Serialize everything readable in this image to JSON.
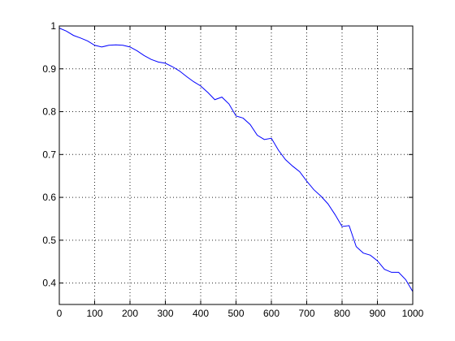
{
  "chart_data": {
    "type": "line",
    "title": "",
    "xlabel": "",
    "ylabel": "",
    "xlim": [
      0,
      1000
    ],
    "ylim": [
      0.35,
      1.0
    ],
    "grid": true,
    "x_ticks": [
      0,
      100,
      200,
      300,
      400,
      500,
      600,
      700,
      800,
      900,
      1000
    ],
    "x_tick_labels": [
      "0",
      "100",
      "200",
      "300",
      "400",
      "500",
      "600",
      "700",
      "800",
      "900",
      "1000"
    ],
    "y_ticks": [
      0.4,
      0.5,
      0.6,
      0.7,
      0.8,
      0.9,
      1.0
    ],
    "y_tick_labels": [
      "0.4",
      "0.5",
      "0.6",
      "0.7",
      "0.8",
      "0.9",
      "1"
    ],
    "series": [
      {
        "color": "#0000ff",
        "x": [
          0,
          20,
          40,
          60,
          80,
          100,
          120,
          140,
          160,
          180,
          200,
          220,
          240,
          260,
          280,
          300,
          320,
          340,
          360,
          380,
          400,
          420,
          440,
          460,
          480,
          500,
          520,
          540,
          560,
          580,
          600,
          620,
          640,
          660,
          680,
          700,
          720,
          740,
          760,
          780,
          800,
          820,
          840,
          860,
          880,
          900,
          920,
          940,
          960,
          980,
          1000
        ],
        "values": [
          0.995,
          0.988,
          0.978,
          0.972,
          0.965,
          0.955,
          0.951,
          0.955,
          0.956,
          0.955,
          0.951,
          0.942,
          0.931,
          0.922,
          0.916,
          0.913,
          0.905,
          0.895,
          0.882,
          0.87,
          0.86,
          0.845,
          0.828,
          0.834,
          0.818,
          0.79,
          0.785,
          0.77,
          0.745,
          0.735,
          0.738,
          0.71,
          0.688,
          0.673,
          0.66,
          0.638,
          0.618,
          0.603,
          0.585,
          0.56,
          0.532,
          0.534,
          0.485,
          0.47,
          0.465,
          0.452,
          0.432,
          0.425,
          0.425,
          0.408,
          0.38
        ]
      }
    ]
  }
}
